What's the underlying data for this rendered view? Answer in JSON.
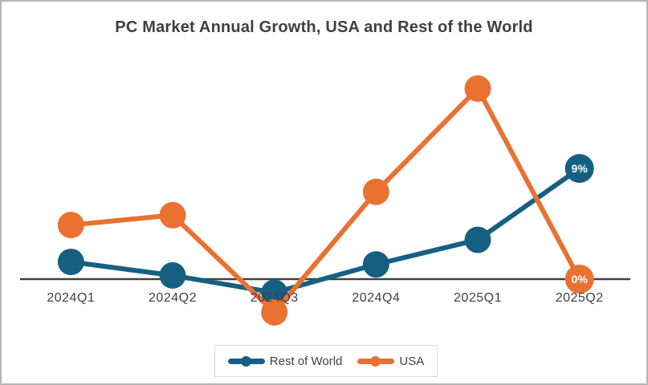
{
  "chart_data": {
    "type": "line",
    "title": "PC Market Annual Growth, USA and Rest of the World",
    "categories": [
      "2024Q1",
      "2024Q2",
      "2024Q3",
      "2024Q4",
      "2025Q1",
      "2025Q2"
    ],
    "series": [
      {
        "name": "Rest of World",
        "color": "#156082",
        "values": [
          1.4,
          0.3,
          -1.1,
          1.2,
          3.2,
          9
        ],
        "end_label": "9%"
      },
      {
        "name": "USA",
        "color": "#E97132",
        "values": [
          4.4,
          5.2,
          -2.7,
          7.1,
          15.5,
          0
        ],
        "end_label": "0%"
      }
    ],
    "unit": "%",
    "xlabel": "",
    "ylabel": "",
    "y_axis_visible": false,
    "gridlines": false,
    "baseline_value": 0,
    "axis_color": "#404040",
    "label_text_color": "#404040",
    "data_label_text_color": "#ffffff",
    "legend_position": "bottom"
  }
}
